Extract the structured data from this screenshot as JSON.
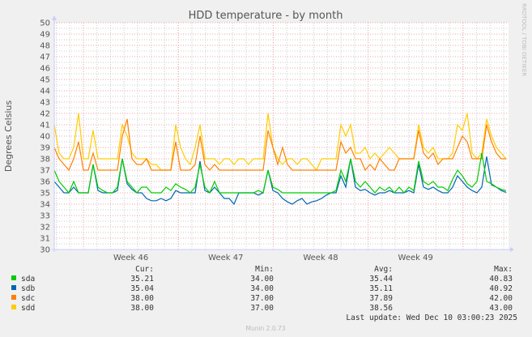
{
  "chart_data": {
    "type": "line",
    "title": "HDD temperature - by month",
    "ylabel": "Degrees Celsius",
    "xlabel": "",
    "ylim": [
      30,
      50
    ],
    "yticks": [
      "30",
      "31",
      "32",
      "33",
      "34",
      "35",
      "36",
      "37",
      "38",
      "39",
      "40",
      "41",
      "42",
      "43",
      "44",
      "45",
      "46",
      "47",
      "48",
      "49",
      "50"
    ],
    "xticks": [
      "Week 46",
      "Week 47",
      "Week 48",
      "Week 49"
    ],
    "grid": true,
    "watermark": "RRDTOOL / TOBI OETIKER",
    "series": [
      {
        "name": "sda",
        "color": "#00cc00",
        "values": [
          37,
          36,
          35.5,
          35,
          36,
          35,
          35,
          35,
          37.5,
          35.5,
          35.2,
          35,
          35,
          35.5,
          38,
          36,
          35.5,
          35,
          35.5,
          35.5,
          35,
          35,
          35,
          35.5,
          35.2,
          35.8,
          35.5,
          35.3,
          35,
          35.5,
          37.5,
          35.5,
          35,
          36,
          35,
          35,
          35,
          35,
          35,
          35,
          35,
          35,
          35.2,
          35,
          37,
          35.5,
          35.3,
          35,
          35,
          35,
          35,
          35,
          35,
          35,
          35,
          35,
          35,
          35,
          35.2,
          37,
          36,
          38,
          36,
          35.5,
          36,
          35.5,
          35,
          35.5,
          35.2,
          35.5,
          35,
          35.5,
          35,
          35.5,
          35.2,
          37.8,
          36,
          35.7,
          36,
          35.5,
          35.5,
          35.2,
          36.2,
          37,
          36.5,
          35.8,
          35.5,
          36,
          38.5,
          36,
          35.8,
          35.5,
          35.3,
          35.2
        ]
      },
      {
        "name": "sdb",
        "color": "#0066b3",
        "values": [
          36,
          35.5,
          35,
          35,
          35.5,
          35,
          35,
          35,
          37.5,
          35.2,
          35,
          35,
          35,
          35.2,
          38,
          35.8,
          35.3,
          35,
          35,
          34.5,
          34.3,
          34.3,
          34.5,
          34.3,
          34.5,
          35.2,
          35,
          35,
          35,
          35,
          37.8,
          35.2,
          35,
          35.5,
          35,
          34.5,
          34.5,
          34,
          35,
          35,
          35,
          35,
          34.8,
          35,
          37,
          35.2,
          35,
          34.5,
          34.2,
          34,
          34.3,
          34.5,
          34,
          34.2,
          34.3,
          34.5,
          34.8,
          35,
          35,
          36.5,
          35.5,
          38,
          35.5,
          35.2,
          35.3,
          35,
          34.8,
          35,
          35,
          35.2,
          35,
          35,
          35,
          35.2,
          35,
          37.5,
          35.5,
          35.3,
          35.5,
          35.2,
          35,
          35,
          35.5,
          36.5,
          36,
          35.5,
          35.2,
          35,
          35.5,
          38.2,
          35.7,
          35.5,
          35.2,
          35.04
        ]
      },
      {
        "name": "sdc",
        "color": "#ff8000",
        "values": [
          39,
          38,
          37.5,
          37,
          38,
          39.5,
          37,
          37,
          38.5,
          37,
          37,
          37,
          37,
          37,
          40,
          41.5,
          38,
          37.5,
          37.5,
          38,
          37,
          37,
          37,
          37,
          37,
          39.5,
          37,
          37,
          37,
          37.5,
          40,
          37.5,
          37,
          37.5,
          37,
          37,
          37,
          37,
          37,
          37,
          37,
          37,
          37,
          37,
          40.5,
          39,
          37.5,
          39,
          37.5,
          37,
          37,
          37,
          37,
          37,
          37,
          37,
          37,
          37,
          37,
          39.5,
          38.5,
          39,
          38,
          38,
          37,
          37.5,
          37,
          38,
          37.5,
          37,
          37,
          38,
          38,
          38,
          38,
          40.5,
          38.5,
          38,
          38.5,
          37.5,
          38,
          38,
          38,
          39,
          40,
          39.5,
          38,
          38,
          38,
          41,
          39.5,
          38.5,
          38,
          38
        ]
      },
      {
        "name": "sdd",
        "color": "#ffcc00",
        "values": [
          41,
          38.5,
          38,
          38,
          39,
          42,
          38,
          38,
          40.5,
          38,
          38,
          38,
          38,
          38,
          41,
          40,
          38.5,
          38,
          38,
          38,
          37.5,
          37.5,
          37,
          37,
          37,
          41,
          39,
          38,
          37.5,
          39,
          41,
          38,
          38,
          38,
          37.5,
          38,
          38,
          37.5,
          38,
          38,
          37.5,
          38,
          38,
          38,
          42,
          39,
          38,
          37.5,
          38,
          38,
          37.5,
          38,
          38,
          37.5,
          37,
          38,
          38,
          38,
          38,
          41,
          40,
          41,
          38.5,
          38.5,
          39,
          38,
          38.5,
          38,
          38.5,
          39,
          38.5,
          38,
          38,
          38,
          38,
          41,
          39,
          38.5,
          39,
          38,
          38,
          38,
          38.5,
          41,
          40.5,
          42,
          38.5,
          38,
          38.5,
          41.5,
          40,
          39,
          38.5,
          38
        ]
      }
    ]
  },
  "legend": {
    "headers": {
      "cur": "Cur:",
      "min": "Min:",
      "avg": "Avg:",
      "max": "Max:"
    },
    "rows": [
      {
        "name": "sda",
        "color": "#00cc00",
        "cur": "35.21",
        "min": "34.00",
        "avg": "35.44",
        "max": "40.83"
      },
      {
        "name": "sdb",
        "color": "#0066b3",
        "cur": "35.04",
        "min": "34.00",
        "avg": "35.11",
        "max": "40.92"
      },
      {
        "name": "sdc",
        "color": "#ff8000",
        "cur": "38.00",
        "min": "37.00",
        "avg": "37.89",
        "max": "42.00"
      },
      {
        "name": "sdd",
        "color": "#ffcc00",
        "cur": "38.00",
        "min": "37.00",
        "avg": "38.56",
        "max": "43.00"
      }
    ],
    "last_update": "Last update: Wed Dec 10 03:00:23 2025"
  },
  "footer": "Munin 2.0.73"
}
